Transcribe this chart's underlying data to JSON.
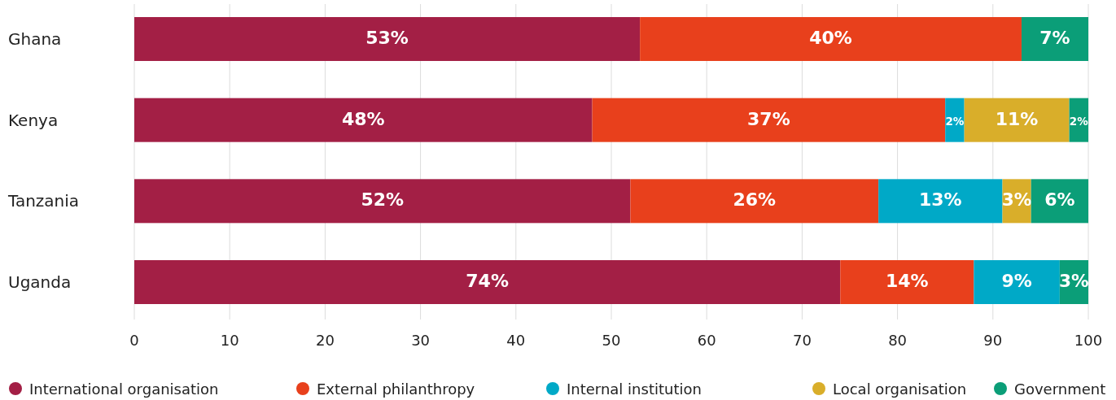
{
  "chart_data": {
    "type": "bar",
    "orientation": "horizontal",
    "stacked": true,
    "categories": [
      "Ghana",
      "Kenya",
      "Tanzania",
      "Uganda"
    ],
    "series": [
      {
        "name": "International organisation",
        "color": "#a31f45",
        "values": [
          53,
          48,
          52,
          74
        ],
        "value_labels": [
          "53%",
          "48%",
          "52%",
          "74%"
        ]
      },
      {
        "name": "External philanthropy",
        "color": "#e8401c",
        "values": [
          40,
          37,
          26,
          14
        ],
        "value_labels": [
          "40%",
          "37%",
          "26%",
          "14%"
        ]
      },
      {
        "name": "Internal institution",
        "color": "#00a9c7",
        "values": [
          null,
          2,
          13,
          9
        ],
        "value_labels": [
          null,
          "2%",
          "13%",
          "9%"
        ]
      },
      {
        "name": "Local organisation",
        "color": "#d9ae2a",
        "values": [
          null,
          11,
          3,
          null
        ],
        "value_labels": [
          null,
          "11%",
          "3%",
          null
        ]
      },
      {
        "name": "Government",
        "color": "#0b9e78",
        "values": [
          7,
          2,
          6,
          3
        ],
        "value_labels": [
          "7%",
          "2%",
          "6%",
          "3%"
        ]
      }
    ],
    "xlim": [
      0,
      100
    ],
    "xticks": [
      0,
      10,
      20,
      30,
      40,
      50,
      60,
      70,
      80,
      90,
      100
    ],
    "grid": "x",
    "legend": "bottom"
  }
}
